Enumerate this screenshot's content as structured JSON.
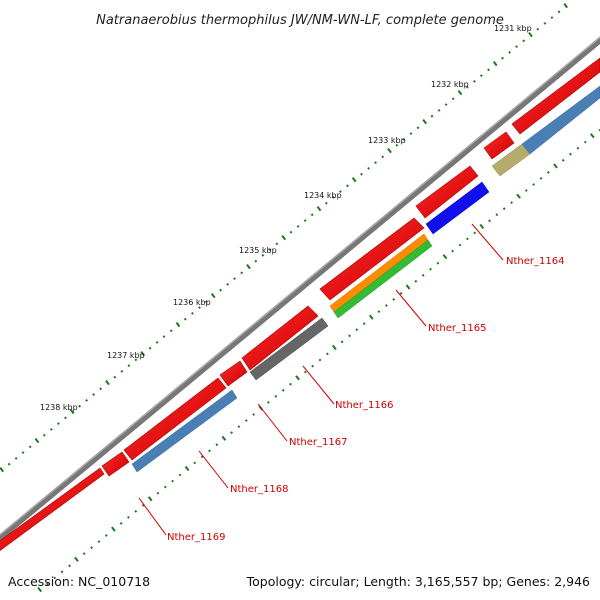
{
  "title": "Natranaerobius thermophilus JW/NM-WN-LF, complete genome",
  "footer": {
    "accession": "Accession: NC_010718",
    "summary": "Topology: circular; Length: 3,165,557 bp; Genes: 2,946"
  },
  "ticks": [
    {
      "label": "1231 kbp"
    },
    {
      "label": "1232 kbp"
    },
    {
      "label": "1233 kbp"
    },
    {
      "label": "1234 kbp"
    },
    {
      "label": "1235 kbp"
    },
    {
      "label": "1236 kbp"
    },
    {
      "label": "1237 kbp"
    },
    {
      "label": "1238 kbp"
    }
  ],
  "genes": [
    {
      "name": "Nther_1164",
      "cog_color": "#1010ee"
    },
    {
      "name": "Nther_1165",
      "cog_color": "#ff8c00",
      "cog_color2": "#33bb33"
    },
    {
      "name": "Nther_1166",
      "cog_color": "#666666"
    },
    {
      "name": "Nther_1167",
      "cog_color": "none"
    },
    {
      "name": "Nther_1168",
      "cog_color": "#4a7fb5"
    },
    {
      "name": "Nther_1169",
      "cog_color": "none"
    }
  ],
  "colors": {
    "backbone": "#8a8888",
    "cds": "#ee0000",
    "cog_other": "#4a7fb5",
    "cog_khaki": "#b5ab6a",
    "gc_dots": "#1a7a1a",
    "label_line": "#cc0000"
  }
}
